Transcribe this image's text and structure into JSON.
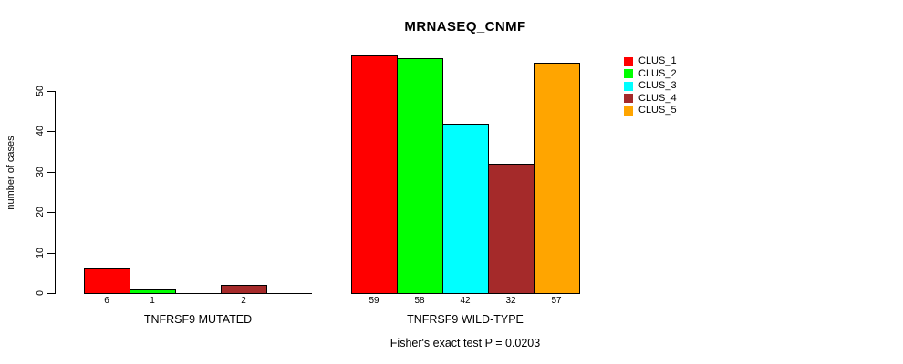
{
  "title": "MRNASEQ_CNMF",
  "y_axis": {
    "label": "number of cases",
    "ticks": [
      0,
      10,
      20,
      30,
      40,
      50
    ]
  },
  "legend": {
    "entries": [
      {
        "label": "CLUS_1",
        "color": "#FF0000"
      },
      {
        "label": "CLUS_2",
        "color": "#00FF00"
      },
      {
        "label": "CLUS_3",
        "color": "#00FFFF"
      },
      {
        "label": "CLUS_4",
        "color": "#A52A2A"
      },
      {
        "label": "CLUS_5",
        "color": "#FFA500"
      }
    ]
  },
  "footer": "Fisher's exact test P = 0.0203",
  "chart_data": {
    "type": "bar",
    "title": "MRNASEQ_CNMF",
    "ylabel": "number of cases",
    "ylim": [
      0,
      50
    ],
    "yticks": [
      0,
      10,
      20,
      30,
      40,
      50
    ],
    "grid": false,
    "legend_position": "right",
    "series": [
      "CLUS_1",
      "CLUS_2",
      "CLUS_3",
      "CLUS_4",
      "CLUS_5"
    ],
    "colors": [
      "#FF0000",
      "#00FF00",
      "#00FFFF",
      "#A52A2A",
      "#FFA500"
    ],
    "groups": [
      {
        "label": "TNFRSF9 MUTATED",
        "values": [
          6,
          1,
          0,
          2,
          0
        ]
      },
      {
        "label": "TNFRSF9 WILD-TYPE",
        "values": [
          59,
          58,
          42,
          32,
          57
        ]
      }
    ],
    "bar_value_labels_shown": true,
    "annotation": "Fisher's exact test P = 0.0203"
  }
}
